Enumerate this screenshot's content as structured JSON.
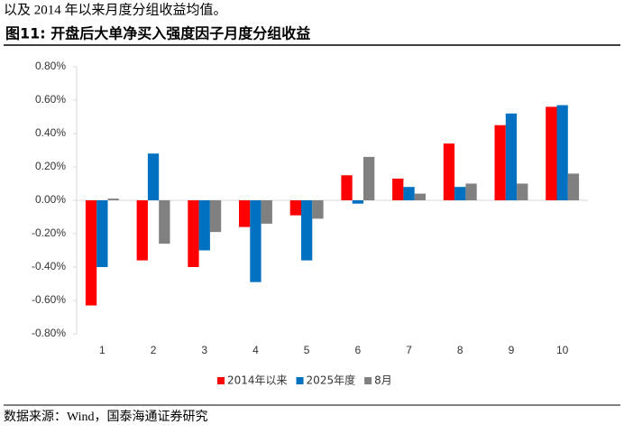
{
  "intro_text": "以及 2014 年以来月度分组收益均值。",
  "figure_title": "图11:  开盘后大单净买入强度因子月度分组收益",
  "source": "数据来源：Wind，国泰海通证券研究",
  "chart_data": {
    "type": "bar",
    "categories": [
      "1",
      "2",
      "3",
      "4",
      "5",
      "6",
      "7",
      "8",
      "9",
      "10"
    ],
    "series": [
      {
        "name": "2014年以来",
        "color": "#ff0000",
        "values": [
          -0.63,
          -0.36,
          -0.4,
          -0.16,
          -0.09,
          0.15,
          0.13,
          0.34,
          0.45,
          0.56
        ]
      },
      {
        "name": "2025年度",
        "color": "#0070c0",
        "values": [
          -0.4,
          0.28,
          -0.3,
          -0.49,
          -0.36,
          -0.02,
          0.08,
          0.08,
          0.52,
          0.57
        ]
      },
      {
        "name": "8月",
        "color": "#808080",
        "values": [
          0.01,
          -0.26,
          -0.19,
          -0.14,
          -0.11,
          0.26,
          0.04,
          0.1,
          0.1,
          0.16
        ]
      }
    ],
    "ylim": [
      -0.8,
      0.8
    ],
    "yticks": [
      {
        "value": -0.8,
        "label": "-0.80%"
      },
      {
        "value": -0.6,
        "label": "-0.60%"
      },
      {
        "value": -0.4,
        "label": "-0.40%"
      },
      {
        "value": -0.2,
        "label": "-0.20%"
      },
      {
        "value": 0,
        "label": "0.00%"
      },
      {
        "value": 0.2,
        "label": "0.20%"
      },
      {
        "value": 0.4,
        "label": "0.40%"
      },
      {
        "value": 0.6,
        "label": "0.60%"
      },
      {
        "value": 0.8,
        "label": "0.80%"
      }
    ],
    "legend": "bottom"
  }
}
